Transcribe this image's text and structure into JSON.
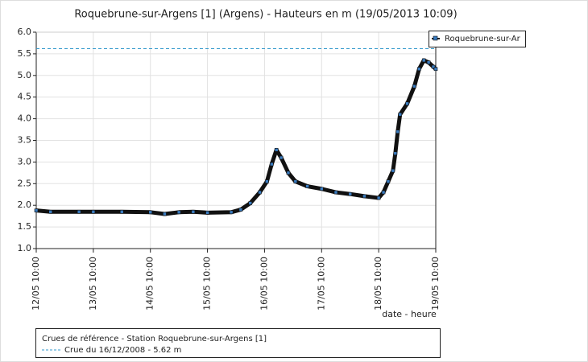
{
  "chart_data": {
    "type": "line",
    "title": "Roquebrune-sur-Argens [1] (Argens) - Hauteurs en m (19/05/2013 10:09)",
    "x_label": "date - heure",
    "x": [
      "12/05 10:00",
      "12/05 16:00",
      "13/05 04:00",
      "13/05 10:00",
      "13/05 22:00",
      "14/05 10:00",
      "14/05 16:00",
      "14/05 22:00",
      "15/05 04:00",
      "15/05 10:00",
      "15/05 20:00",
      "16/05 00:00",
      "16/05 04:00",
      "16/05 08:00",
      "16/05 11:00",
      "16/05 13:00",
      "16/05 15:00",
      "16/05 17:00",
      "16/05 20:00",
      "16/05 23:00",
      "17/05 04:00",
      "17/05 10:00",
      "17/05 16:00",
      "17/05 22:00",
      "18/05 04:00",
      "18/05 10:00",
      "18/05 12:00",
      "18/05 14:00",
      "18/05 16:00",
      "18/05 17:00",
      "18/05 18:00",
      "18/05 19:00",
      "18/05 22:00",
      "19/05 01:00",
      "19/05 03:00",
      "19/05 05:00",
      "19/05 07:00",
      "19/05 09:00",
      "19/05 10:00"
    ],
    "series": [
      {
        "name": "Roquebrune-sur-Ar",
        "color": "#3a7cc0",
        "values": [
          1.88,
          1.85,
          1.85,
          1.85,
          1.85,
          1.84,
          1.8,
          1.84,
          1.85,
          1.83,
          1.84,
          1.9,
          2.05,
          2.3,
          2.55,
          2.95,
          3.28,
          3.1,
          2.75,
          2.55,
          2.44,
          2.38,
          2.3,
          2.26,
          2.21,
          2.17,
          2.3,
          2.55,
          2.8,
          3.2,
          3.7,
          4.1,
          4.35,
          4.75,
          5.15,
          5.35,
          5.3,
          5.2,
          5.15
        ]
      }
    ],
    "xlim": [
      "12/05 10:00",
      "19/05 10:00"
    ],
    "xticks": [
      "12/05 10:00",
      "13/05 10:00",
      "14/05 10:00",
      "15/05 10:00",
      "16/05 10:00",
      "17/05 10:00",
      "18/05 10:00",
      "19/05 10:00"
    ],
    "ylim": [
      1,
      6
    ],
    "yticks": [
      {
        "value": 1,
        "label": "1.0"
      },
      1.5,
      {
        "value": 2,
        "label": "2.0"
      },
      2.5,
      {
        "value": 3,
        "label": "3.0"
      },
      3.5,
      {
        "value": 4,
        "label": "4.0"
      },
      4.5,
      {
        "value": 5,
        "label": "5.0"
      },
      5.5,
      {
        "value": 6,
        "label": "6.0"
      }
    ],
    "grid": true,
    "legend": "top-right",
    "reference_title": "Crues de référence - Station Roquebrune-sur-Argens [1]",
    "reference_line": {
      "value": 5.62,
      "label": "Crue du 16/12/2008 - 5.62 m",
      "color": "#3399cc"
    }
  }
}
